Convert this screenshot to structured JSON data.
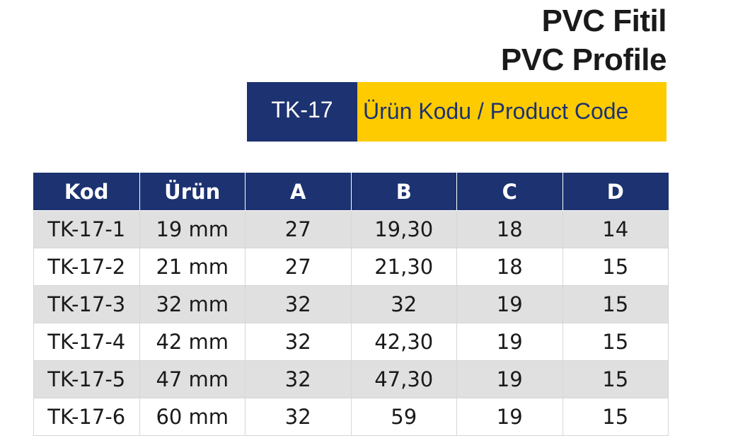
{
  "header": {
    "title_tr": "PVC Fitil",
    "title_en": "PVC Profile"
  },
  "product": {
    "code": "TK-17",
    "code_label": "Ürün Kodu / Product Code"
  },
  "table": {
    "headers": {
      "kod": "Kod",
      "urun": "Ürün",
      "a": "A",
      "b": "B",
      "c": "C",
      "d": "D"
    },
    "rows": [
      {
        "kod": "TK-17-1",
        "urun": "19 mm",
        "a": "27",
        "b": "19,30",
        "c": "18",
        "d": "14"
      },
      {
        "kod": "TK-17-2",
        "urun": "21 mm",
        "a": "27",
        "b": "21,30",
        "c": "18",
        "d": "15"
      },
      {
        "kod": "TK-17-3",
        "urun": "32 mm",
        "a": "32",
        "b": "32",
        "c": "19",
        "d": "15"
      },
      {
        "kod": "TK-17-4",
        "urun": "42 mm",
        "a": "32",
        "b": "42,30",
        "c": "19",
        "d": "15"
      },
      {
        "kod": "TK-17-5",
        "urun": "47 mm",
        "a": "32",
        "b": "47,30",
        "c": "19",
        "d": "15"
      },
      {
        "kod": "TK-17-6",
        "urun": "60 mm",
        "a": "32",
        "b": "59",
        "c": "19",
        "d": "15"
      }
    ]
  },
  "colors": {
    "navy": "#1d3270",
    "yellow": "#fecb00",
    "row_alt": "#e0e0e0"
  }
}
